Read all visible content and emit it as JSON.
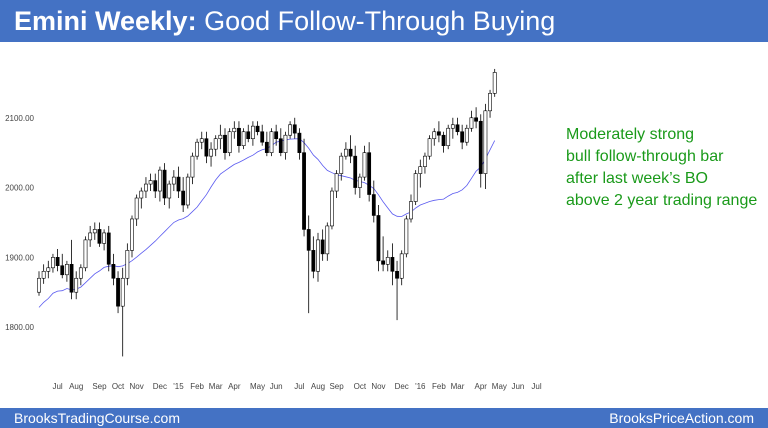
{
  "header": {
    "title_bold": "Emini Weekly:",
    "title_rest": "Good Follow-Through Buying"
  },
  "annotation": {
    "lines": [
      "Moderately strong",
      "bull follow-through bar",
      "after last week’s BO",
      "above 2 year trading range"
    ]
  },
  "footer": {
    "left": "BrooksTradingCourse.com",
    "right": "BrooksPriceAction.com"
  },
  "colors": {
    "header_bg": "#4472c4",
    "bull_body": "#ffffff",
    "bear_body": "#000000",
    "moving_average": "#5b5bf0",
    "highlight": "#7fd97f",
    "annotation_text": "#1a9a1a"
  },
  "chart_data": {
    "type": "candlestick",
    "y_ticks": [
      "1800.00",
      "1900.00",
      "2000.00",
      "2100.00"
    ],
    "y_tick_values": [
      1800,
      1900,
      2000,
      2100
    ],
    "ylim": [
      1750,
      2200
    ],
    "x_tick_labels": [
      {
        "label": "Jul",
        "index": 4
      },
      {
        "label": "Aug",
        "index": 8
      },
      {
        "label": "Sep",
        "index": 13
      },
      {
        "label": "Oct",
        "index": 17
      },
      {
        "label": "Nov",
        "index": 21
      },
      {
        "label": "Dec",
        "index": 26
      },
      {
        "label": "'15",
        "index": 30
      },
      {
        "label": "Feb",
        "index": 34
      },
      {
        "label": "Mar",
        "index": 38
      },
      {
        "label": "Apr",
        "index": 42
      },
      {
        "label": "May",
        "index": 47
      },
      {
        "label": "Jun",
        "index": 51
      },
      {
        "label": "Jul",
        "index": 56
      },
      {
        "label": "Aug",
        "index": 60
      },
      {
        "label": "Sep",
        "index": 64
      },
      {
        "label": "Oct",
        "index": 69
      },
      {
        "label": "Nov",
        "index": 73
      },
      {
        "label": "Dec",
        "index": 78
      },
      {
        "label": "'16",
        "index": 82
      },
      {
        "label": "Feb",
        "index": 86
      },
      {
        "label": "Mar",
        "index": 90
      },
      {
        "label": "Apr",
        "index": 95
      },
      {
        "label": "May",
        "index": 99
      },
      {
        "label": "Jun",
        "index": 103
      },
      {
        "label": "Jul",
        "index": 107
      }
    ],
    "highlight_index": 108,
    "ma_period": 20,
    "candles": [
      [
        1850,
        1880,
        1845,
        1870
      ],
      [
        1870,
        1890,
        1862,
        1880
      ],
      [
        1880,
        1895,
        1870,
        1885
      ],
      [
        1885,
        1905,
        1878,
        1900
      ],
      [
        1900,
        1912,
        1880,
        1888
      ],
      [
        1888,
        1905,
        1870,
        1875
      ],
      [
        1875,
        1895,
        1865,
        1890
      ],
      [
        1890,
        1925,
        1840,
        1850
      ],
      [
        1850,
        1880,
        1840,
        1870
      ],
      [
        1870,
        1890,
        1860,
        1885
      ],
      [
        1885,
        1930,
        1880,
        1925
      ],
      [
        1925,
        1945,
        1915,
        1935
      ],
      [
        1935,
        1950,
        1925,
        1940
      ],
      [
        1940,
        1950,
        1915,
        1920
      ],
      [
        1920,
        1940,
        1910,
        1935
      ],
      [
        1935,
        1945,
        1880,
        1890
      ],
      [
        1890,
        1905,
        1860,
        1870
      ],
      [
        1870,
        1880,
        1820,
        1830
      ],
      [
        1830,
        1885,
        1758,
        1870
      ],
      [
        1870,
        1920,
        1860,
        1910
      ],
      [
        1910,
        1960,
        1900,
        1955
      ],
      [
        1955,
        1990,
        1945,
        1985
      ],
      [
        1985,
        2000,
        1970,
        1995
      ],
      [
        1995,
        2015,
        1985,
        2005
      ],
      [
        2005,
        2020,
        1995,
        2010
      ],
      [
        2010,
        2020,
        1985,
        1995
      ],
      [
        1995,
        2030,
        1980,
        2025
      ],
      [
        2025,
        2035,
        1975,
        1985
      ],
      [
        1985,
        2010,
        1970,
        2005
      ],
      [
        2005,
        2025,
        1995,
        2015
      ],
      [
        2015,
        2030,
        1985,
        1995
      ],
      [
        1995,
        2015,
        1965,
        1975
      ],
      [
        1975,
        2020,
        1970,
        2015
      ],
      [
        2015,
        2050,
        2005,
        2045
      ],
      [
        2045,
        2070,
        2040,
        2065
      ],
      [
        2065,
        2080,
        2055,
        2070
      ],
      [
        2070,
        2080,
        2035,
        2045
      ],
      [
        2045,
        2065,
        2030,
        2055
      ],
      [
        2055,
        2075,
        2045,
        2070
      ],
      [
        2070,
        2090,
        2055,
        2075
      ],
      [
        2075,
        2085,
        2040,
        2050
      ],
      [
        2050,
        2085,
        2045,
        2080
      ],
      [
        2080,
        2095,
        2070,
        2085
      ],
      [
        2085,
        2095,
        2050,
        2060
      ],
      [
        2060,
        2085,
        2055,
        2080
      ],
      [
        2080,
        2090,
        2065,
        2070
      ],
      [
        2070,
        2095,
        2060,
        2088
      ],
      [
        2088,
        2095,
        2075,
        2080
      ],
      [
        2080,
        2090,
        2060,
        2065
      ],
      [
        2065,
        2080,
        2045,
        2050
      ],
      [
        2050,
        2085,
        2045,
        2080
      ],
      [
        2080,
        2090,
        2060,
        2070
      ],
      [
        2070,
        2085,
        2045,
        2050
      ],
      [
        2050,
        2080,
        2040,
        2075
      ],
      [
        2075,
        2095,
        2070,
        2090
      ],
      [
        2090,
        2100,
        2070,
        2078
      ],
      [
        2078,
        2085,
        2040,
        2050
      ],
      [
        2050,
        2070,
        1930,
        1940
      ],
      [
        1940,
        1960,
        1820,
        1910
      ],
      [
        1910,
        1930,
        1870,
        1880
      ],
      [
        1880,
        1935,
        1865,
        1925
      ],
      [
        1925,
        1940,
        1895,
        1905
      ],
      [
        1905,
        1950,
        1895,
        1945
      ],
      [
        1945,
        2000,
        1940,
        1995
      ],
      [
        1995,
        2025,
        1985,
        2020
      ],
      [
        2020,
        2050,
        2010,
        2045
      ],
      [
        2045,
        2065,
        2040,
        2055
      ],
      [
        2055,
        2075,
        2035,
        2045
      ],
      [
        2045,
        2060,
        1990,
        2000
      ],
      [
        2000,
        2020,
        1985,
        2015
      ],
      [
        2015,
        2060,
        2010,
        2050
      ],
      [
        2050,
        2065,
        1980,
        1990
      ],
      [
        1990,
        2010,
        1950,
        1960
      ],
      [
        1960,
        1975,
        1880,
        1895
      ],
      [
        1895,
        1930,
        1880,
        1890
      ],
      [
        1890,
        1910,
        1880,
        1900
      ],
      [
        1900,
        1920,
        1860,
        1880
      ],
      [
        1880,
        1895,
        1810,
        1870
      ],
      [
        1870,
        1910,
        1860,
        1905
      ],
      [
        1905,
        1960,
        1900,
        1955
      ],
      [
        1955,
        1990,
        1950,
        1980
      ],
      [
        1980,
        2025,
        1975,
        2020
      ],
      [
        2020,
        2040,
        2000,
        2030
      ],
      [
        2030,
        2050,
        2020,
        2045
      ],
      [
        2045,
        2075,
        2040,
        2070
      ],
      [
        2070,
        2085,
        2060,
        2080
      ],
      [
        2080,
        2095,
        2065,
        2075
      ],
      [
        2075,
        2080,
        2050,
        2060
      ],
      [
        2060,
        2090,
        2055,
        2085
      ],
      [
        2085,
        2100,
        2070,
        2090
      ],
      [
        2090,
        2100,
        2075,
        2080
      ],
      [
        2080,
        2090,
        2055,
        2065
      ],
      [
        2065,
        2090,
        2060,
        2085
      ],
      [
        2085,
        2110,
        2080,
        2100
      ],
      [
        2100,
        2115,
        2085,
        2095
      ],
      [
        2095,
        2105,
        2000,
        2020
      ],
      [
        2020,
        2120,
        1998,
        2110
      ],
      [
        2110,
        2140,
        2100,
        2135
      ],
      [
        2135,
        2170,
        2130,
        2165
      ]
    ]
  }
}
